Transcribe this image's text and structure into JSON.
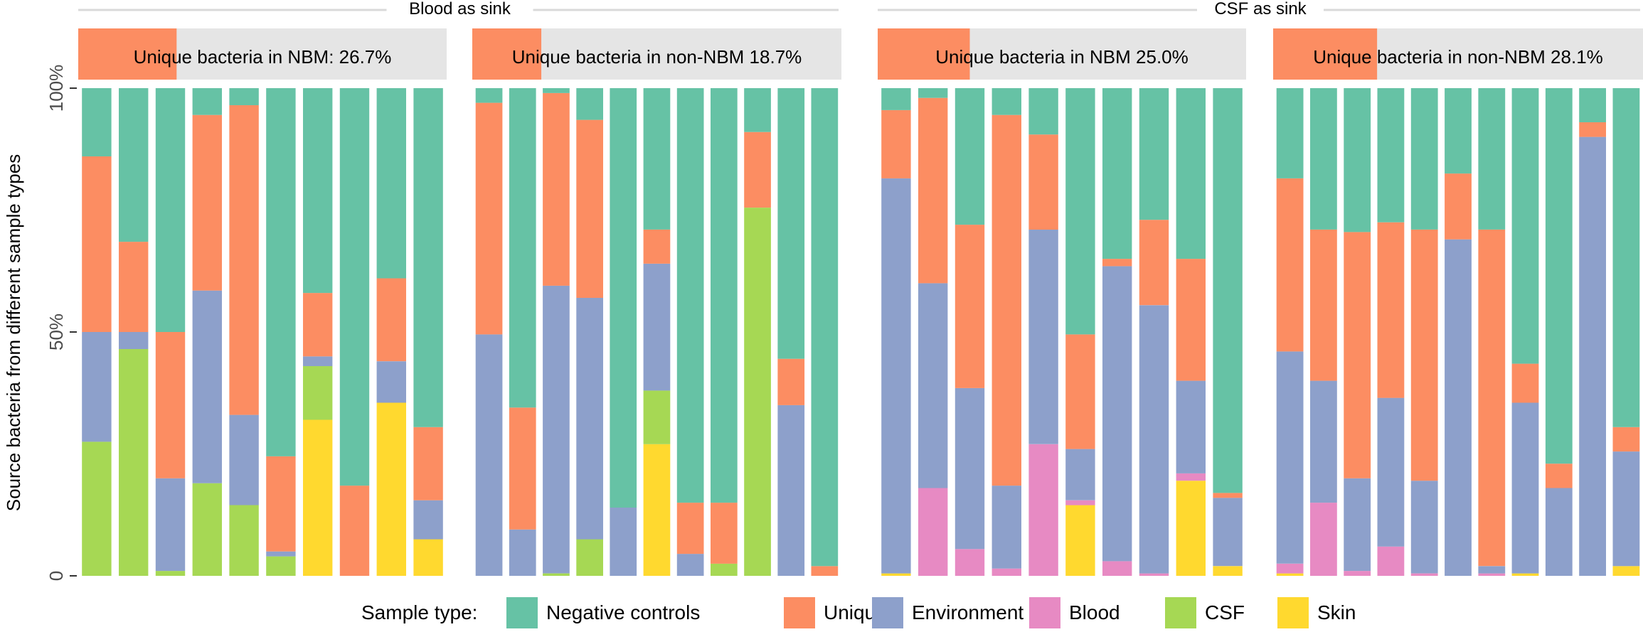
{
  "chart_data": {
    "type": "bar",
    "stacked": true,
    "ylabel": "Source bacteria from different sample types",
    "y_ticks": [
      "0",
      "50%",
      "100%"
    ],
    "y_tick_values": [
      0,
      50,
      100
    ],
    "ylim": [
      0,
      100
    ],
    "groups": [
      {
        "label": "Blood as sink",
        "panels": [
          0,
          1
        ]
      },
      {
        "label": "CSF as sink",
        "panels": [
          2,
          3
        ]
      }
    ],
    "legend": {
      "title": "Sample type:",
      "placement": "bottom",
      "items": [
        {
          "name": "Negative controls",
          "color": "#66c2a5"
        },
        {
          "name": "Unique",
          "color": "#fc8d62"
        },
        {
          "name": "Environment",
          "color": "#8da0cb"
        },
        {
          "name": "Blood",
          "color": "#e78ac3"
        },
        {
          "name": "CSF",
          "color": "#a6d854"
        },
        {
          "name": "Skin",
          "color": "#ffd92f"
        }
      ]
    },
    "stack_order_bottom_to_top": [
      "Skin",
      "CSF",
      "Blood",
      "Environment",
      "Unique",
      "Negative controls"
    ],
    "panels": [
      {
        "title": "Unique bacteria in NBM: 26.7%",
        "unique_fraction": 26.7,
        "bars": [
          {
            "Skin": 0,
            "CSF": 27.5,
            "Blood": 0,
            "Environment": 22.5,
            "Unique": 36,
            "Negative controls": 14
          },
          {
            "Skin": 0,
            "CSF": 46.5,
            "Blood": 0,
            "Environment": 3.5,
            "Unique": 18.5,
            "Negative controls": 31.5
          },
          {
            "Skin": 0,
            "CSF": 1,
            "Blood": 0,
            "Environment": 19,
            "Unique": 30,
            "Negative controls": 50
          },
          {
            "Skin": 0,
            "CSF": 19,
            "Blood": 0,
            "Environment": 39.5,
            "Unique": 36,
            "Negative controls": 5.5
          },
          {
            "Skin": 0,
            "CSF": 14.5,
            "Blood": 0,
            "Environment": 18.5,
            "Unique": 63.5,
            "Negative controls": 3.5
          },
          {
            "Skin": 0,
            "CSF": 4,
            "Blood": 0,
            "Environment": 1,
            "Unique": 19.5,
            "Negative controls": 75.5
          },
          {
            "Skin": 32,
            "CSF": 11,
            "Blood": 0,
            "Environment": 2,
            "Unique": 13,
            "Negative controls": 42
          },
          {
            "Skin": 0,
            "CSF": 0,
            "Blood": 0,
            "Environment": 0,
            "Unique": 18.5,
            "Negative controls": 81.5
          },
          {
            "Skin": 35.5,
            "CSF": 0,
            "Blood": 0,
            "Environment": 8.5,
            "Unique": 17,
            "Negative controls": 39
          },
          {
            "Skin": 7.5,
            "CSF": 0,
            "Blood": 0,
            "Environment": 8,
            "Unique": 15,
            "Negative controls": 69.5
          }
        ]
      },
      {
        "title": "Unique bacteria in non-NBM 18.7%",
        "unique_fraction": 18.7,
        "bars": [
          {
            "Skin": 0,
            "CSF": 0,
            "Blood": 0,
            "Environment": 49.5,
            "Unique": 47.5,
            "Negative controls": 3
          },
          {
            "Skin": 0,
            "CSF": 0,
            "Blood": 0,
            "Environment": 9.5,
            "Unique": 25,
            "Negative controls": 65.5
          },
          {
            "Skin": 0,
            "CSF": 0.5,
            "Blood": 0,
            "Environment": 59,
            "Unique": 39.5,
            "Negative controls": 1
          },
          {
            "Skin": 0,
            "CSF": 7.5,
            "Blood": 0,
            "Environment": 49.5,
            "Unique": 36.5,
            "Negative controls": 6.5
          },
          {
            "Skin": 0,
            "CSF": 0,
            "Blood": 0,
            "Environment": 14,
            "Unique": 0,
            "Negative controls": 86
          },
          {
            "Skin": 27,
            "CSF": 11,
            "Blood": 0,
            "Environment": 26,
            "Unique": 7,
            "Negative controls": 29
          },
          {
            "Skin": 0,
            "CSF": 0,
            "Blood": 0,
            "Environment": 4.5,
            "Unique": 10.5,
            "Negative controls": 85
          },
          {
            "Skin": 0,
            "CSF": 2.5,
            "Blood": 0,
            "Environment": 0,
            "Unique": 12.5,
            "Negative controls": 85
          },
          {
            "Skin": 0,
            "CSF": 75.5,
            "Blood": 0,
            "Environment": 0,
            "Unique": 15.5,
            "Negative controls": 9
          },
          {
            "Skin": 0,
            "CSF": 0,
            "Blood": 0,
            "Environment": 35,
            "Unique": 9.5,
            "Negative controls": 55.5
          },
          {
            "Skin": 0,
            "CSF": 0,
            "Blood": 0,
            "Environment": 0,
            "Unique": 2,
            "Negative controls": 98
          }
        ]
      },
      {
        "title": "Unique bacteria in NBM 25.0%",
        "unique_fraction": 25.0,
        "bars": [
          {
            "Skin": 0.5,
            "CSF": 0,
            "Blood": 0,
            "Environment": 81,
            "Unique": 14,
            "Negative controls": 4.5
          },
          {
            "Skin": 0,
            "CSF": 0,
            "Blood": 18,
            "Environment": 42,
            "Unique": 38,
            "Negative controls": 2
          },
          {
            "Skin": 0,
            "CSF": 0,
            "Blood": 5.5,
            "Environment": 33,
            "Unique": 33.5,
            "Negative controls": 28
          },
          {
            "Skin": 0,
            "CSF": 0,
            "Blood": 1.5,
            "Environment": 17,
            "Unique": 76,
            "Negative controls": 5.5
          },
          {
            "Skin": 0,
            "CSF": 0,
            "Blood": 27,
            "Environment": 44,
            "Unique": 19.5,
            "Negative controls": 9.5
          },
          {
            "Skin": 14.5,
            "CSF": 0,
            "Blood": 1,
            "Environment": 10.5,
            "Unique": 23.5,
            "Negative controls": 50.5
          },
          {
            "Skin": 0,
            "CSF": 0,
            "Blood": 3,
            "Environment": 60.5,
            "Unique": 1.5,
            "Negative controls": 35
          },
          {
            "Skin": 0,
            "CSF": 0,
            "Blood": 0.5,
            "Environment": 55,
            "Unique": 17.5,
            "Negative controls": 27
          },
          {
            "Skin": 19.5,
            "CSF": 0,
            "Blood": 1.5,
            "Environment": 19,
            "Unique": 25,
            "Negative controls": 35
          },
          {
            "Skin": 2,
            "CSF": 0,
            "Blood": 0,
            "Environment": 14,
            "Unique": 1,
            "Negative controls": 83
          }
        ]
      },
      {
        "title": "Unique bacteria in non-NBM 28.1%",
        "unique_fraction": 28.1,
        "bars": [
          {
            "Skin": 0.5,
            "CSF": 0,
            "Blood": 2,
            "Environment": 43.5,
            "Unique": 35.5,
            "Negative controls": 18.5
          },
          {
            "Skin": 0,
            "CSF": 0,
            "Blood": 15,
            "Environment": 25,
            "Unique": 31,
            "Negative controls": 29
          },
          {
            "Skin": 0,
            "CSF": 0,
            "Blood": 1,
            "Environment": 19,
            "Unique": 50.5,
            "Negative controls": 29.5
          },
          {
            "Skin": 0,
            "CSF": 0,
            "Blood": 6,
            "Environment": 30.5,
            "Unique": 36,
            "Negative controls": 27.5
          },
          {
            "Skin": 0,
            "CSF": 0,
            "Blood": 0.5,
            "Environment": 19,
            "Unique": 51.5,
            "Negative controls": 29
          },
          {
            "Skin": 0,
            "CSF": 0,
            "Blood": 0,
            "Environment": 69,
            "Unique": 13.5,
            "Negative controls": 17.5
          },
          {
            "Skin": 0,
            "CSF": 0,
            "Blood": 0.5,
            "Environment": 1.5,
            "Unique": 69,
            "Negative controls": 29
          },
          {
            "Skin": 0.5,
            "CSF": 0,
            "Blood": 0,
            "Environment": 35,
            "Unique": 8,
            "Negative controls": 56.5
          },
          {
            "Skin": 0,
            "CSF": 0,
            "Blood": 0,
            "Environment": 18,
            "Unique": 5,
            "Negative controls": 77
          },
          {
            "Skin": 0,
            "CSF": 0,
            "Blood": 0,
            "Environment": 90,
            "Unique": 3,
            "Negative controls": 7
          },
          {
            "Skin": 2,
            "CSF": 0,
            "Blood": 0,
            "Environment": 23.5,
            "Unique": 5,
            "Negative controls": 69.5
          }
        ]
      }
    ]
  }
}
